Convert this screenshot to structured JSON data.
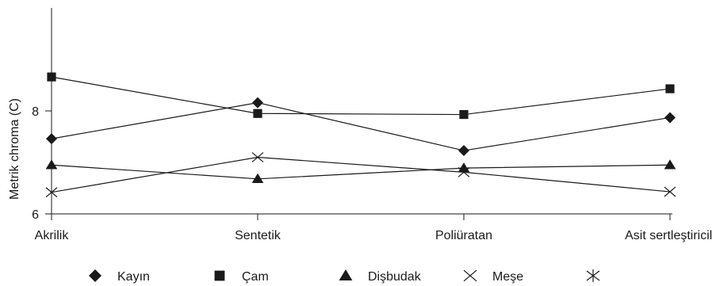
{
  "chart_data": {
    "type": "line",
    "categories": [
      "Akrilik",
      "Sentetik",
      "Poliüratan",
      "Asit sertleştiricili"
    ],
    "ylabel": "Metrik chroma (C)",
    "xlabel": "",
    "title": "",
    "ylim": [
      6,
      10
    ],
    "yticks": [
      6,
      8
    ],
    "grid": false,
    "legend_position": "bottom",
    "series": [
      {
        "name": "Kayın",
        "marker": "diamond",
        "values": [
          7.46,
          8.16,
          7.23,
          7.87
        ]
      },
      {
        "name": "Çam",
        "marker": "square",
        "values": [
          8.66,
          7.95,
          7.93,
          8.43
        ]
      },
      {
        "name": "Dişbudak",
        "marker": "triangle",
        "values": [
          6.95,
          6.68,
          6.89,
          6.95
        ]
      },
      {
        "name": "Meşe",
        "marker": "x",
        "values": [
          6.42,
          7.1,
          6.81,
          6.43
        ]
      }
    ],
    "legend_extra_marker": "asterisk",
    "colors": {
      "line": "#1a1a1a",
      "axis": "#1a1a1a"
    }
  }
}
